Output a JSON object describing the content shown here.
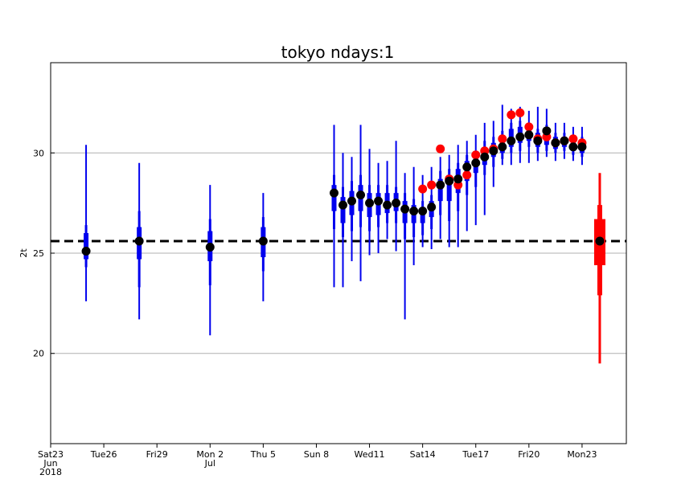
{
  "chart_data": {
    "type": "scatter",
    "title": "tokyo ndays:1",
    "ylabel": "2t",
    "xlabel": "",
    "ylim": [
      15.5,
      34.5
    ],
    "xlim": [
      0,
      32.5
    ],
    "y_ticks": [
      20,
      25,
      30
    ],
    "y_grid": true,
    "reference_line": {
      "value": 25.6,
      "style": "dashed",
      "color": "#000000"
    },
    "x_ticks": [
      {
        "x": 0,
        "lines": [
          "Sat23",
          "Jun",
          "2018"
        ],
        "color": "#000000"
      },
      {
        "x": 3,
        "lines": [
          "Tue26"
        ],
        "color": "#000000"
      },
      {
        "x": 6,
        "lines": [
          "Fri29"
        ],
        "color": "#000000"
      },
      {
        "x": 9,
        "lines": [
          "Mon 2",
          "Jul"
        ],
        "color": "#000000"
      },
      {
        "x": 12,
        "lines": [
          "Thu 5"
        ],
        "color": "#000000"
      },
      {
        "x": 15,
        "lines": [
          "Sun 8"
        ],
        "color": "#ff0000"
      },
      {
        "x": 18,
        "lines": [
          "Wed11"
        ],
        "color": "#000000"
      },
      {
        "x": 21,
        "lines": [
          "Sat14"
        ],
        "color": "#000000"
      },
      {
        "x": 24,
        "lines": [
          "Tue17"
        ],
        "color": "#000000"
      },
      {
        "x": 27,
        "lines": [
          "Fri20"
        ],
        "color": "#000000"
      },
      {
        "x": 30,
        "lines": [
          "Mon23"
        ],
        "color": "#000000"
      }
    ],
    "colors": {
      "forecast": "#0000ee",
      "climate": "#ff0000",
      "median": "#000000",
      "observed": "#ff0000"
    },
    "series": [
      {
        "type": "boxplot",
        "boxes": [
          {
            "x": 2,
            "whisker": [
              22.6,
              30.4
            ],
            "outer": [
              24.3,
              26.4
            ],
            "inner": [
              24.7,
              26.0
            ],
            "median": 25.1
          },
          {
            "x": 5,
            "whisker": [
              21.7,
              29.5
            ],
            "outer": [
              23.3,
              27.1
            ],
            "inner": [
              24.7,
              26.3
            ],
            "median": 25.6
          },
          {
            "x": 9,
            "whisker": [
              20.9,
              28.4
            ],
            "outer": [
              23.4,
              26.7
            ],
            "inner": [
              24.6,
              26.1
            ],
            "median": 25.3
          },
          {
            "x": 12,
            "whisker": [
              22.6,
              28.0
            ],
            "outer": [
              24.1,
              26.8
            ],
            "inner": [
              24.8,
              26.3
            ],
            "median": 25.6
          },
          {
            "x": 16,
            "whisker": [
              23.3,
              31.4
            ],
            "outer": [
              26.2,
              28.9
            ],
            "inner": [
              27.1,
              28.4
            ],
            "median": 28.0
          },
          {
            "x": 16.5,
            "whisker": [
              23.3,
              30.0
            ],
            "outer": [
              25.8,
              28.3
            ],
            "inner": [
              26.5,
              27.8
            ],
            "median": 27.4
          },
          {
            "x": 17,
            "whisker": [
              24.6,
              29.8
            ],
            "outer": [
              26.1,
              28.6
            ],
            "inner": [
              26.9,
              28.1
            ],
            "median": 27.6
          },
          {
            "x": 17.5,
            "whisker": [
              23.6,
              31.4
            ],
            "outer": [
              26.3,
              28.9
            ],
            "inner": [
              27.1,
              28.4
            ],
            "median": 27.9
          },
          {
            "x": 18,
            "whisker": [
              24.9,
              30.2
            ],
            "outer": [
              26.1,
              28.4
            ],
            "inner": [
              26.8,
              28.0
            ],
            "median": 27.5
          },
          {
            "x": 18.5,
            "whisker": [
              25.0,
              29.5
            ],
            "outer": [
              26.3,
              28.4
            ],
            "inner": [
              26.9,
              28.0
            ],
            "median": 27.6
          },
          {
            "x": 19,
            "whisker": [
              25.7,
              29.6
            ],
            "outer": [
              26.5,
              28.4
            ],
            "inner": [
              27.0,
              28.0
            ],
            "median": 27.4
          },
          {
            "x": 19.5,
            "whisker": [
              25.1,
              30.6
            ],
            "outer": [
              26.5,
              28.3
            ],
            "inner": [
              27.1,
              28.0
            ],
            "median": 27.5
          },
          {
            "x": 20,
            "whisker": [
              21.7,
              29.0
            ],
            "outer": [
              25.7,
              28.0
            ],
            "inner": [
              26.5,
              27.6
            ],
            "median": 27.2
          },
          {
            "x": 20.5,
            "whisker": [
              24.4,
              29.3
            ],
            "outer": [
              25.8,
              27.7
            ],
            "inner": [
              26.5,
              27.4
            ],
            "median": 27.1
          },
          {
            "x": 21,
            "whisker": [
              25.3,
              28.9
            ],
            "outer": [
              25.9,
              27.6
            ],
            "inner": [
              26.5,
              27.3
            ],
            "median": 27.1
          },
          {
            "x": 21.5,
            "whisker": [
              25.2,
              29.3
            ],
            "outer": [
              26.2,
              27.9
            ],
            "inner": [
              26.8,
              27.6
            ],
            "median": 27.3
          },
          {
            "x": 22,
            "whisker": [
              25.7,
              29.8
            ],
            "outer": [
              26.9,
              29.1
            ],
            "inner": [
              27.6,
              28.7
            ],
            "median": 28.4
          },
          {
            "x": 22.5,
            "whisker": [
              25.3,
              29.9
            ],
            "outer": [
              26.6,
              29.2
            ],
            "inner": [
              27.6,
              28.9
            ],
            "median": 28.6
          },
          {
            "x": 23,
            "whisker": [
              25.3,
              30.4
            ],
            "outer": [
              27.1,
              29.5
            ],
            "inner": [
              28.0,
              29.2
            ],
            "median": 28.7
          },
          {
            "x": 23.5,
            "whisker": [
              26.1,
              30.6
            ],
            "outer": [
              27.9,
              29.9
            ],
            "inner": [
              28.6,
              29.6
            ],
            "median": 29.3
          },
          {
            "x": 24,
            "whisker": [
              26.4,
              30.9
            ],
            "outer": [
              28.3,
              30.1
            ],
            "inner": [
              29.0,
              29.8
            ],
            "median": 29.5
          },
          {
            "x": 24.5,
            "whisker": [
              26.9,
              31.5
            ],
            "outer": [
              28.9,
              30.6
            ],
            "inner": [
              29.4,
              30.2
            ],
            "median": 29.8
          },
          {
            "x": 25,
            "whisker": [
              28.3,
              31.6
            ],
            "outer": [
              29.3,
              30.8
            ],
            "inner": [
              29.8,
              30.5
            ],
            "median": 30.1
          },
          {
            "x": 25.5,
            "whisker": [
              29.4,
              32.4
            ],
            "outer": [
              29.7,
              31.1
            ],
            "inner": [
              30.0,
              30.8
            ],
            "median": 30.3
          },
          {
            "x": 26,
            "whisker": [
              29.4,
              32.2
            ],
            "outer": [
              30.0,
              31.5
            ],
            "inner": [
              30.3,
              31.2
            ],
            "median": 30.6
          },
          {
            "x": 26.5,
            "whisker": [
              29.5,
              32.3
            ],
            "outer": [
              30.1,
              31.6
            ],
            "inner": [
              30.5,
              31.3
            ],
            "median": 30.8
          },
          {
            "x": 27,
            "whisker": [
              29.5,
              32.1
            ],
            "outer": [
              30.3,
              31.5
            ],
            "inner": [
              30.6,
              31.2
            ],
            "median": 30.9
          },
          {
            "x": 27.5,
            "whisker": [
              29.6,
              32.3
            ],
            "outer": [
              30.0,
              31.2
            ],
            "inner": [
              30.3,
              31.0
            ],
            "median": 30.6
          },
          {
            "x": 28,
            "whisker": [
              29.8,
              32.2
            ],
            "outer": [
              30.1,
              31.4
            ],
            "inner": [
              30.4,
              31.2
            ],
            "median": 31.1
          },
          {
            "x": 28.5,
            "whisker": [
              29.6,
              31.5
            ],
            "outer": [
              30.0,
              31.0
            ],
            "inner": [
              30.2,
              30.8
            ],
            "median": 30.5
          },
          {
            "x": 29,
            "whisker": [
              29.7,
              31.5
            ],
            "outer": [
              30.1,
              31.0
            ],
            "inner": [
              30.3,
              30.8
            ],
            "median": 30.6
          },
          {
            "x": 29.5,
            "whisker": [
              29.6,
              31.3
            ],
            "outer": [
              29.9,
              30.8
            ],
            "inner": [
              30.1,
              30.6
            ],
            "median": 30.3
          },
          {
            "x": 30,
            "whisker": [
              29.4,
              31.3
            ],
            "outer": [
              29.8,
              30.8
            ],
            "inner": [
              30.0,
              30.6
            ],
            "median": 30.3
          }
        ]
      },
      {
        "type": "climate",
        "x": 31,
        "whisker": [
          19.5,
          29.0
        ],
        "outer": [
          22.9,
          27.4
        ],
        "inner": [
          24.4,
          26.7
        ],
        "median": 25.6
      },
      {
        "type": "observed",
        "points": [
          {
            "x": 21,
            "y": 28.2
          },
          {
            "x": 21.5,
            "y": 28.4
          },
          {
            "x": 22,
            "y": 30.2
          },
          {
            "x": 22.5,
            "y": 28.7
          },
          {
            "x": 23,
            "y": 28.4
          },
          {
            "x": 23.5,
            "y": 28.9
          },
          {
            "x": 24,
            "y": 29.9
          },
          {
            "x": 24.5,
            "y": 30.1
          },
          {
            "x": 25,
            "y": 30.2
          },
          {
            "x": 25.5,
            "y": 30.7
          },
          {
            "x": 26,
            "y": 31.9
          },
          {
            "x": 26.5,
            "y": 32.0
          },
          {
            "x": 27,
            "y": 31.3
          },
          {
            "x": 27.5,
            "y": 30.7
          },
          {
            "x": 28,
            "y": 30.8
          },
          {
            "x": 28.5,
            "y": 30.5
          },
          {
            "x": 29,
            "y": 30.6
          },
          {
            "x": 29.5,
            "y": 30.7
          },
          {
            "x": 30,
            "y": 30.5
          }
        ]
      }
    ]
  }
}
